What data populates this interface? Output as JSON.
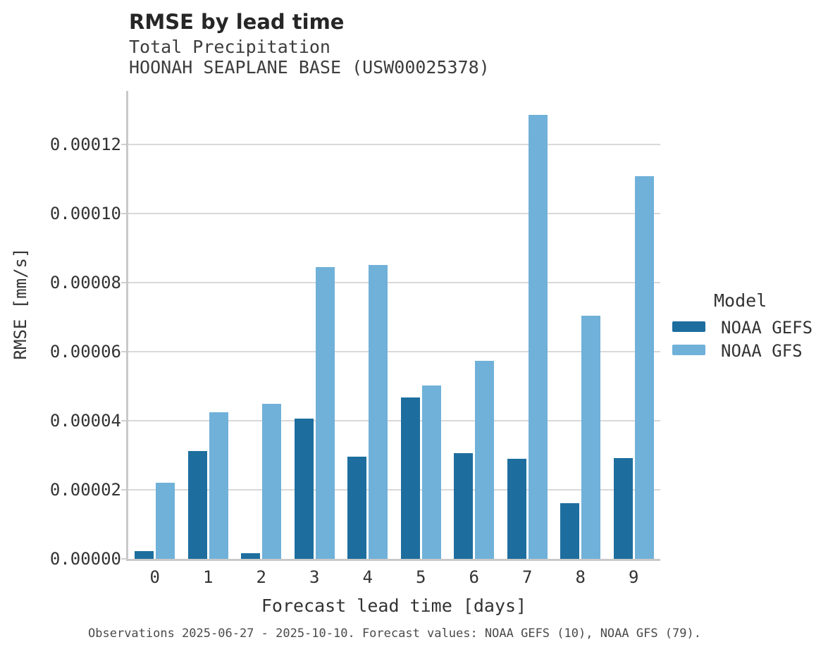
{
  "header": {
    "title": "RMSE by lead time",
    "subtitle_line1": "Total Precipitation",
    "subtitle_line2": "HOONAH SEAPLANE BASE (USW00025378)"
  },
  "chart_data": {
    "type": "bar",
    "title": "RMSE by lead time",
    "subtitle": [
      "Total Precipitation",
      "HOONAH SEAPLANE BASE (USW00025378)"
    ],
    "categories": [
      "0",
      "1",
      "2",
      "3",
      "4",
      "5",
      "6",
      "7",
      "8",
      "9"
    ],
    "series": [
      {
        "name": "NOAA GEFS",
        "color": "#1d6e9e",
        "values": [
          2.2e-06,
          3.11e-05,
          1.6e-06,
          4.06e-05,
          2.95e-05,
          4.67e-05,
          3.06e-05,
          2.9e-05,
          1.61e-05,
          2.92e-05
        ]
      },
      {
        "name": "NOAA GFS",
        "color": "#70b1d9",
        "values": [
          2.2e-05,
          4.25e-05,
          4.49e-05,
          8.44e-05,
          8.51e-05,
          5.02e-05,
          5.73e-05,
          0.0001285,
          7.04e-05,
          0.0001108
        ]
      }
    ],
    "xlabel": "Forecast lead time [days]",
    "ylabel": "RMSE [mm/s]",
    "ylim": [
      0,
      0.0001354
    ],
    "yticks": [
      {
        "value": 0.0,
        "label": "0.00000"
      },
      {
        "value": 2e-05,
        "label": "0.00002"
      },
      {
        "value": 4e-05,
        "label": "0.00004"
      },
      {
        "value": 6e-05,
        "label": "0.00006"
      },
      {
        "value": 8e-05,
        "label": "0.00008"
      },
      {
        "value": 0.0001,
        "label": "0.00010"
      },
      {
        "value": 0.00012,
        "label": "0.00012"
      }
    ],
    "grid": "horizontal",
    "legend_position": "right"
  },
  "legend": {
    "title": "Model",
    "entries": [
      {
        "label": "NOAA GEFS",
        "color": "#1d6e9e"
      },
      {
        "label": "NOAA GFS",
        "color": "#70b1d9"
      }
    ]
  },
  "footer": {
    "caption": "Observations 2025-06-27 - 2025-10-10. Forecast values: NOAA GEFS (10), NOAA GFS (79)."
  }
}
